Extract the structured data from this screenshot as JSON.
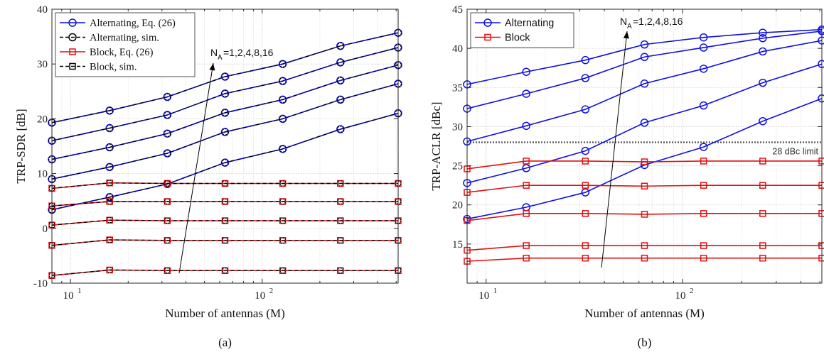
{
  "chart_data": [
    {
      "type": "line",
      "panel_label": "(a)",
      "xlabel": "Number of antennas (M)",
      "ylabel": "TRP-SDR [dB]",
      "xscale": "log",
      "xlim": [
        8,
        512
      ],
      "ylim": [
        -10,
        40
      ],
      "yticks": [
        -10,
        0,
        10,
        20,
        30,
        40
      ],
      "xticks": [
        10,
        100
      ],
      "xtick_labels": [
        "10",
        "1",
        "10",
        "2"
      ],
      "grid": true,
      "legend_position": "top-left",
      "legend": [
        {
          "label": "Alternating, Eq. (26)",
          "color": "#1010e0",
          "marker": "circle",
          "dash": "solid"
        },
        {
          "label": "Alternating, sim.",
          "color": "#000000",
          "marker": "circle",
          "dash": "dashed"
        },
        {
          "label": "Block, Eq. (26)",
          "color": "#e01010",
          "marker": "square",
          "dash": "solid"
        },
        {
          "label": "Block, sim.",
          "color": "#000000",
          "marker": "square",
          "dash": "dashed"
        }
      ],
      "annotation": {
        "text": "N",
        "subscript": "A",
        "rest": "=1,2,4,8,16"
      },
      "x": [
        8,
        16,
        32,
        64,
        128,
        256,
        512
      ],
      "series": [
        {
          "group": "Alternating",
          "values": [
            19.3,
            21.5,
            24.0,
            27.7,
            30.0,
            33.3,
            35.7
          ]
        },
        {
          "group": "Alternating",
          "values": [
            16.0,
            18.3,
            20.7,
            24.6,
            26.9,
            30.3,
            33.0
          ]
        },
        {
          "group": "Alternating",
          "values": [
            12.6,
            14.8,
            17.3,
            21.1,
            23.5,
            27.0,
            29.8
          ]
        },
        {
          "group": "Alternating",
          "values": [
            9.0,
            11.2,
            13.7,
            17.6,
            20.0,
            23.5,
            26.4
          ]
        },
        {
          "group": "Alternating",
          "values": [
            3.4,
            5.7,
            8.1,
            12.0,
            14.5,
            18.1,
            21.0
          ]
        },
        {
          "group": "Block",
          "values": [
            7.3,
            8.3,
            8.2,
            8.2,
            8.2,
            8.2,
            8.2
          ]
        },
        {
          "group": "Block",
          "values": [
            4.1,
            4.9,
            4.9,
            4.9,
            4.9,
            4.9,
            4.9
          ]
        },
        {
          "group": "Block",
          "values": [
            0.6,
            1.5,
            1.4,
            1.4,
            1.4,
            1.4,
            1.4
          ]
        },
        {
          "group": "Block",
          "values": [
            -3.1,
            -2.1,
            -2.2,
            -2.2,
            -2.2,
            -2.2,
            -2.2
          ]
        },
        {
          "group": "Block",
          "values": [
            -8.6,
            -7.6,
            -7.7,
            -7.7,
            -7.7,
            -7.7,
            -7.7
          ]
        }
      ]
    },
    {
      "type": "line",
      "panel_label": "(b)",
      "xlabel": "Number of antennas (M)",
      "ylabel": "TRP-ACLR [dBc]",
      "xscale": "log",
      "xlim": [
        8,
        512
      ],
      "ylim": [
        10,
        45
      ],
      "yticks": [
        15,
        20,
        25,
        30,
        35,
        40,
        45
      ],
      "xticks": [
        10,
        100
      ],
      "xtick_labels": [
        "10",
        "1",
        "10",
        "2"
      ],
      "grid": true,
      "legend_position": "top-left",
      "legend": [
        {
          "label": "Alternating",
          "color": "#1010e0",
          "marker": "circle",
          "dash": "solid"
        },
        {
          "label": "Block",
          "color": "#e01010",
          "marker": "square",
          "dash": "solid"
        }
      ],
      "annotation": {
        "text": "N",
        "subscript": "A",
        "rest": "=1,2,4,8,16"
      },
      "reference_line": {
        "y": 28,
        "label": "28 dBc limit",
        "color": "#555555"
      },
      "x": [
        8,
        16,
        32,
        64,
        128,
        256,
        512
      ],
      "series": [
        {
          "group": "Alternating",
          "values": [
            35.4,
            37.0,
            38.5,
            40.5,
            41.4,
            42.0,
            42.4
          ]
        },
        {
          "group": "Alternating",
          "values": [
            32.3,
            34.2,
            36.2,
            38.9,
            40.1,
            41.3,
            42.2
          ]
        },
        {
          "group": "Alternating",
          "values": [
            28.1,
            30.1,
            32.2,
            35.5,
            37.4,
            39.6,
            41.0
          ]
        },
        {
          "group": "Alternating",
          "values": [
            22.8,
            24.7,
            26.9,
            30.5,
            32.7,
            35.6,
            38.0
          ]
        },
        {
          "group": "Alternating",
          "values": [
            18.2,
            19.7,
            21.6,
            25.1,
            27.4,
            30.7,
            33.6
          ]
        },
        {
          "group": "Block",
          "values": [
            24.6,
            25.6,
            25.6,
            25.5,
            25.6,
            25.6,
            25.6
          ]
        },
        {
          "group": "Block",
          "values": [
            21.6,
            22.5,
            22.5,
            22.4,
            22.5,
            22.5,
            22.5
          ]
        },
        {
          "group": "Block",
          "values": [
            18.0,
            18.9,
            18.9,
            18.8,
            18.9,
            18.9,
            18.9
          ]
        },
        {
          "group": "Block",
          "values": [
            14.2,
            14.8,
            14.8,
            14.8,
            14.8,
            14.8,
            14.8
          ]
        },
        {
          "group": "Block",
          "values": [
            12.8,
            13.2,
            13.2,
            13.2,
            13.2,
            13.2,
            13.2
          ]
        }
      ]
    }
  ]
}
